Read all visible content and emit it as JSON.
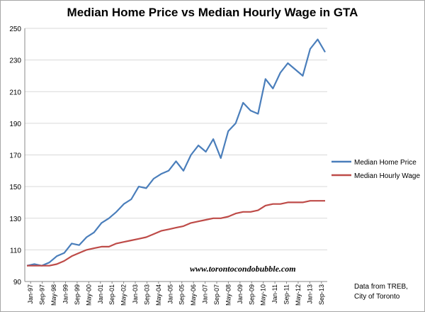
{
  "chart_data": {
    "type": "line",
    "title": "Median Home Price vs Median Hourly Wage in GTA",
    "ylim": [
      90,
      250
    ],
    "yticks": [
      90,
      110,
      130,
      150,
      170,
      190,
      210,
      230,
      250
    ],
    "xlabels": [
      "Jan-97",
      "Sep-97",
      "May-98",
      "Jan-99",
      "Sep-99",
      "May-00",
      "Jan-01",
      "Sep-01",
      "May-02",
      "Jan-03",
      "Sep-03",
      "May-04",
      "Jan-05",
      "Sep-05",
      "May-06",
      "Jan-07",
      "Sep-07",
      "May-08",
      "Jan-09",
      "Sep-09",
      "May-10",
      "Jan-11",
      "Sep-11",
      "May-12",
      "Jan-13",
      "Sep-13"
    ],
    "x_start": "1997-01",
    "x_step": "4 months",
    "grid": "horizontal",
    "legend": "right",
    "series": [
      {
        "name": "Median Home Price",
        "color": "#4a7ebb",
        "values": [
          100,
          101,
          100,
          102,
          106,
          108,
          114,
          113,
          118,
          121,
          127,
          130,
          134,
          139,
          142,
          150,
          149,
          155,
          158,
          160,
          166,
          160,
          170,
          176,
          172,
          180,
          168,
          185,
          190,
          203,
          198,
          196,
          218,
          212,
          222,
          228,
          224,
          220,
          237,
          243,
          235
        ]
      },
      {
        "name": "Median Hourly Wage",
        "color": "#be4b48",
        "values": [
          100,
          100,
          100,
          100,
          101,
          103,
          106,
          108,
          110,
          111,
          112,
          112,
          114,
          115,
          116,
          117,
          118,
          120,
          122,
          123,
          124,
          125,
          127,
          128,
          129,
          130,
          130,
          131,
          133,
          134,
          134,
          135,
          138,
          139,
          139,
          140,
          140,
          140,
          141,
          141,
          141
        ]
      }
    ],
    "source_note": [
      "Data from TREB,",
      "City of Toronto"
    ],
    "watermark": "www.torontocondobubble.com"
  }
}
